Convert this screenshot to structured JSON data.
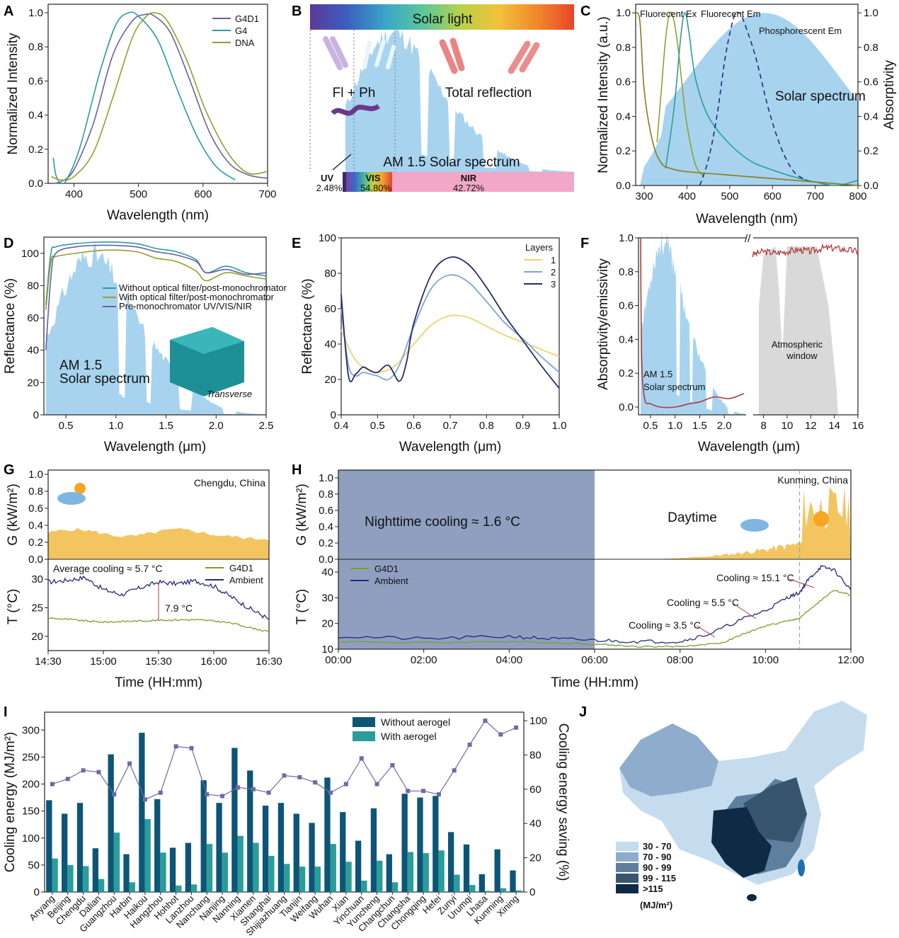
{
  "colors": {
    "g4d1": "#6a5ea8",
    "g4": "#2a9d9a",
    "dna": "#8fa12e",
    "solar_fill": "#a7d3ef",
    "gray_fill": "#d9d9d9",
    "red_line": "#b03a3a",
    "navy": "#252a7a",
    "green": "#7b9f2a",
    "yellow": "#f3c560",
    "night": "#8f9fc0",
    "bar_dark": "#0d5577",
    "bar_teal": "#2a9d9a",
    "saving_line": "#6d6aa8",
    "layer1": "#f0d36b",
    "layer2": "#7da5d3",
    "layer3": "#252a6e"
  },
  "panel_letters": [
    "A",
    "B",
    "C",
    "D",
    "E",
    "F",
    "G",
    "H",
    "I",
    "J"
  ],
  "chart_data": [
    {
      "id": "A",
      "type": "line",
      "xlabel": "Wavelength (nm)",
      "ylabel": "Normalized Intensity",
      "xlim": [
        360,
        700
      ],
      "ylim": [
        0,
        1.05
      ],
      "xticks": [
        "400",
        "500",
        "600",
        "700"
      ],
      "yticks": [
        "0.0",
        "0.2",
        "0.4",
        "0.6",
        "0.8",
        "1.0"
      ],
      "legend": "top-right",
      "series": [
        {
          "name": "G4D1",
          "x": [
            365,
            380,
            400,
            430,
            460,
            490,
            510,
            525,
            550,
            580,
            610,
            640,
            670,
            700
          ],
          "y": [
            0.0,
            0.01,
            0.08,
            0.35,
            0.75,
            0.95,
            0.99,
            0.98,
            0.88,
            0.6,
            0.3,
            0.12,
            0.05,
            0.03
          ]
        },
        {
          "name": "G4",
          "x": [
            368,
            372,
            380,
            390,
            410,
            440,
            465,
            485,
            500,
            530,
            560,
            590,
            620,
            650
          ],
          "y": [
            0.15,
            0.05,
            0.0,
            0.03,
            0.22,
            0.65,
            0.93,
            1.0,
            0.98,
            0.84,
            0.55,
            0.28,
            0.1,
            0.02
          ]
        },
        {
          "name": "DNA",
          "x": [
            365,
            380,
            400,
            430,
            460,
            490,
            510,
            525,
            545,
            575,
            605,
            640,
            670,
            700
          ],
          "y": [
            0.04,
            0.02,
            0.04,
            0.18,
            0.5,
            0.85,
            0.97,
            1.0,
            0.95,
            0.72,
            0.42,
            0.17,
            0.06,
            0.07
          ]
        }
      ]
    },
    {
      "id": "B",
      "type": "area",
      "title": "Solar light",
      "caption": "AM 1.5 Solar spectrum",
      "labels": {
        "flph": "Fl + Ph",
        "reflection": "Total reflection"
      },
      "bands": [
        {
          "name": "UV",
          "value": "2.48%"
        },
        {
          "name": "VIS",
          "value": "54.80%"
        },
        {
          "name": "NIR",
          "value": "42.72%"
        }
      ]
    },
    {
      "id": "C",
      "type": "line",
      "xlabel": "Wavelength (nm)",
      "ylabel": "Normalized Intensity (a.u.)",
      "y2label": "Absorptivity",
      "xlim": [
        280,
        800
      ],
      "ylim": [
        0,
        1.05
      ],
      "y2lim": [
        0,
        1.05
      ],
      "xticks": [
        "300",
        "400",
        "500",
        "600",
        "700",
        "800"
      ],
      "yticks": [
        "0.0",
        "0.2",
        "0.4",
        "0.6",
        "0.8",
        "1.0"
      ],
      "y2ticks": [
        "0.0",
        "0.2",
        "0.4",
        "0.6",
        "0.8",
        "1.0"
      ],
      "annotations": [
        "Fluorecent Ex",
        "Fluorecent Em",
        "Phosphorescent Em",
        "Solar spectrum"
      ],
      "series": [
        {
          "name": "Fluorecent Ex",
          "x": [
            330,
            340,
            350,
            360,
            370,
            380,
            390,
            400,
            420,
            440
          ],
          "y": [
            0.25,
            0.55,
            0.85,
            1.0,
            0.95,
            0.78,
            0.55,
            0.35,
            0.12,
            0.05
          ]
        },
        {
          "name": "Fluorecent Em",
          "x": [
            350,
            370,
            385,
            395,
            405,
            420,
            450,
            500,
            550,
            600,
            650,
            700,
            750,
            800
          ],
          "y": [
            0.1,
            0.45,
            0.85,
            1.0,
            0.88,
            0.62,
            0.4,
            0.24,
            0.14,
            0.09,
            0.05,
            0.02,
            0.0,
            0.03
          ]
        },
        {
          "name": "Phosphorescent Em",
          "x": [
            430,
            450,
            470,
            490,
            510,
            520,
            530,
            560,
            590,
            620,
            650,
            680
          ],
          "y": [
            0.0,
            0.15,
            0.4,
            0.75,
            0.98,
            1.0,
            0.97,
            0.75,
            0.45,
            0.22,
            0.08,
            0.03
          ]
        },
        {
          "name": "Absorptivity",
          "x": [
            280,
            290,
            300,
            320,
            340,
            360,
            400,
            500,
            600,
            700,
            800
          ],
          "y": [
            1.0,
            0.95,
            0.55,
            0.25,
            0.13,
            0.1,
            0.08,
            0.06,
            0.04,
            0.02,
            0.0
          ]
        }
      ]
    },
    {
      "id": "D",
      "type": "line",
      "xlabel": "Wavelength (μm)",
      "ylabel": "Reflectance (%)",
      "xlim": [
        0.28,
        2.5
      ],
      "ylim": [
        0,
        110
      ],
      "xticks": [
        "0.5",
        "1.0",
        "1.5",
        "2.0",
        "2.5"
      ],
      "yticks": [
        "0",
        "20",
        "40",
        "60",
        "80",
        "100"
      ],
      "annotations": [
        "AM 1.5",
        "Solar spectrum",
        "Transverse"
      ],
      "series": [
        {
          "name": "Without optical filter/post-monochromator",
          "x": [
            0.3,
            0.35,
            0.4,
            0.6,
            0.9,
            1.2,
            1.4,
            1.6,
            1.8,
            1.9,
            2.1,
            2.3,
            2.5
          ],
          "y": [
            68,
            100,
            104,
            106,
            107,
            106,
            103,
            101,
            96,
            88,
            92,
            88,
            86
          ]
        },
        {
          "name": "With optical filter/post-monochromator",
          "x": [
            0.3,
            0.35,
            0.4,
            0.6,
            0.9,
            1.2,
            1.4,
            1.6,
            1.8,
            1.9,
            2.1,
            2.3,
            2.5
          ],
          "y": [
            65,
            95,
            98,
            100,
            102,
            101,
            97,
            95,
            89,
            83,
            88,
            86,
            84
          ]
        },
        {
          "name": "Pre-monochromator UV/VIS/NIR",
          "x": [
            0.3,
            0.35,
            0.4,
            0.6,
            0.9,
            1.2,
            1.4,
            1.6,
            1.8,
            1.9,
            2.1,
            2.3,
            2.5
          ],
          "y": [
            40,
            85,
            100,
            104,
            105,
            104,
            101,
            99,
            95,
            88,
            90,
            87,
            88
          ]
        }
      ]
    },
    {
      "id": "E",
      "type": "line",
      "xlabel": "Wavelength (μm)",
      "ylabel": "Reflectance (%)",
      "xlim": [
        0.4,
        1.0
      ],
      "ylim": [
        0,
        100
      ],
      "xticks": [
        "0.4",
        "0.5",
        "0.6",
        "0.7",
        "0.8",
        "0.9",
        "1.0"
      ],
      "yticks": [
        "0",
        "20",
        "40",
        "60",
        "80",
        "100"
      ],
      "legend_title": "Layers",
      "legend": "top-right",
      "series": [
        {
          "name": "1",
          "x": [
            0.4,
            0.43,
            0.46,
            0.5,
            0.55,
            0.6,
            0.65,
            0.7,
            0.75,
            0.8,
            0.85,
            0.9,
            0.95,
            1.0
          ],
          "y": [
            48,
            34,
            27,
            24,
            28,
            40,
            51,
            56,
            55,
            50,
            45,
            41,
            37,
            33
          ]
        },
        {
          "name": "2",
          "x": [
            0.4,
            0.42,
            0.44,
            0.46,
            0.48,
            0.5,
            0.53,
            0.56,
            0.6,
            0.65,
            0.7,
            0.75,
            0.8,
            0.85,
            0.9,
            0.95,
            1.0
          ],
          "y": [
            60,
            28,
            22,
            24,
            23,
            22,
            20,
            28,
            50,
            72,
            79,
            75,
            64,
            52,
            43,
            33,
            24
          ]
        },
        {
          "name": "3",
          "x": [
            0.4,
            0.42,
            0.44,
            0.46,
            0.48,
            0.5,
            0.53,
            0.56,
            0.58,
            0.6,
            0.65,
            0.7,
            0.75,
            0.8,
            0.85,
            0.9,
            0.95,
            1.0
          ],
          "y": [
            68,
            22,
            23,
            27,
            25,
            24,
            28,
            19,
            30,
            52,
            80,
            89,
            85,
            72,
            56,
            42,
            28,
            15
          ]
        }
      ]
    },
    {
      "id": "F",
      "type": "line",
      "xlabel": "Wavelength (μm)",
      "ylabel": "Absorptivity/emissivity",
      "ylim": [
        0,
        1.0
      ],
      "xticks": [
        "0.5",
        "1.0",
        "1.5",
        "2.0",
        "8",
        "10",
        "12",
        "14",
        "16"
      ],
      "yticks": [
        "0.0",
        "0.2",
        "0.4",
        "0.6",
        "0.8",
        "1.0"
      ],
      "annotations": [
        "AM 1.5",
        "Solar spectrum",
        "Atmospheric",
        "window"
      ]
    },
    {
      "id": "G",
      "type": "line",
      "title": "Chengdu, China",
      "xlabel": "Time (HH:mm)",
      "ylabel_top": "G (kW/m²)",
      "ylabel_bottom": "T (°C)",
      "xticks": [
        "14:30",
        "15:00",
        "15:30",
        "16:00",
        "16:30"
      ],
      "yticks_top": [
        "0.0",
        "0.2",
        "0.4",
        "0.6",
        "0.8",
        "1.0"
      ],
      "yticks_bottom": [
        "20",
        "25",
        "30"
      ],
      "annotations": [
        "Average cooling ≈ 5.7 °C",
        "7.9 °C"
      ],
      "series": [
        {
          "name": "G4D1",
          "x": [
            0,
            10,
            20,
            30,
            40,
            50,
            60,
            70,
            80,
            90,
            100,
            110,
            120
          ],
          "y": [
            23.2,
            23.0,
            22.7,
            22.5,
            22.6,
            22.7,
            22.8,
            22.9,
            22.9,
            22.7,
            22.3,
            21.5,
            20.8
          ]
        },
        {
          "name": "Ambient",
          "x": [
            0,
            10,
            20,
            30,
            40,
            50,
            60,
            70,
            80,
            90,
            100,
            110,
            120
          ],
          "y": [
            29.5,
            29.8,
            30.3,
            28.2,
            27.3,
            28.5,
            29.5,
            29.2,
            29.7,
            28.8,
            26.8,
            24.8,
            23.0
          ]
        }
      ]
    },
    {
      "id": "H",
      "type": "line",
      "title": "Kunming, China",
      "xlabel": "Time (HH:mm)",
      "ylabel_top": "G (kW/m²)",
      "ylabel_bottom": "T (°C)",
      "xticks": [
        "00:00",
        "02:00",
        "04:00",
        "06:00",
        "08:00",
        "10:00",
        "12:00"
      ],
      "yticks_top": [
        "0.0",
        "0.2",
        "0.4",
        "0.6",
        "0.8",
        "1.0"
      ],
      "yticks_bottom": [
        "10",
        "20",
        "30",
        "40"
      ],
      "annotations": [
        "Nighttime cooling ≈ 1.6 °C",
        "Daytime",
        "Cooling ≈ 15.1 °C",
        "Cooling ≈ 5.5 °C",
        "Cooling ≈ 3.5 °C"
      ],
      "series": [
        {
          "name": "G4D1",
          "x": [
            0,
            2,
            4,
            5,
            6,
            7,
            8,
            9,
            9.5,
            10,
            10.5,
            10.8,
            11,
            11.3,
            11.6,
            12
          ],
          "y": [
            13,
            12.5,
            13,
            12.5,
            12,
            11,
            11,
            12.5,
            16,
            19,
            21,
            22,
            25,
            29,
            33,
            31
          ]
        },
        {
          "name": "Ambient",
          "x": [
            0,
            2,
            4,
            5,
            6,
            7,
            8,
            8.7,
            9.5,
            10,
            10.5,
            10.8,
            11,
            11.3,
            11.6,
            12
          ],
          "y": [
            15,
            14,
            15,
            14,
            13.5,
            13,
            13,
            16,
            22,
            25,
            30,
            32,
            37,
            42,
            41,
            33
          ]
        }
      ]
    },
    {
      "id": "I",
      "type": "bar",
      "ylabel": "Cooling energy (MJ/m²)",
      "y2label": "Cooling energy saving (%)",
      "ylim": [
        0,
        320
      ],
      "y2lim": [
        0,
        105
      ],
      "yticks": [
        "0",
        "50",
        "100",
        "150",
        "200",
        "250",
        "300"
      ],
      "y2ticks": [
        "0",
        "20",
        "40",
        "60",
        "80",
        "100"
      ],
      "legend": "top-center",
      "categories": [
        "Anyang",
        "Beijing",
        "Chengdu",
        "Dalian",
        "Guangzhou",
        "Harbin",
        "Haikou",
        "Hangzhou",
        "Hohhot",
        "Lanzhou",
        "Nanchang",
        "Nanjing",
        "Nanning",
        "Xiamen",
        "Shanghai",
        "Shijiazhuang",
        "Tianjin",
        "Weifang",
        "Wuhan",
        "Xian",
        "Yinchuan",
        "Yuncheng",
        "Changchun",
        "Changsha",
        "Chongqing",
        "Hefei",
        "Zunyi",
        "Urumqi",
        "Lhasa",
        "Kunming",
        "Xining"
      ],
      "series": [
        {
          "name": "Without aerogel",
          "values": [
            170,
            145,
            165,
            81,
            255,
            70,
            295,
            172,
            82,
            91,
            207,
            165,
            267,
            225,
            160,
            165,
            145,
            128,
            212,
            148,
            95,
            155,
            70,
            182,
            175,
            178,
            111,
            88,
            33,
            79,
            40
          ]
        },
        {
          "name": "With aerogel",
          "values": [
            62,
            50,
            48,
            24,
            110,
            18,
            135,
            73,
            12,
            14,
            89,
            73,
            104,
            91,
            67,
            52,
            47,
            47,
            89,
            56,
            21,
            58,
            18,
            74,
            72,
            77,
            32,
            13,
            2,
            7,
            3
          ]
        },
        {
          "name": "Cooling energy saving",
          "values": [
            63,
            66,
            71,
            70,
            57,
            75,
            54,
            58,
            85,
            84,
            57,
            56,
            61,
            60,
            58,
            68,
            67,
            64,
            58,
            63,
            78,
            63,
            74,
            59,
            59,
            57,
            71,
            86,
            100,
            92,
            96
          ]
        }
      ]
    },
    {
      "id": "J",
      "type": "heatmap",
      "legend": [
        {
          "range": "30 - 70",
          "color": "#c5dcef"
        },
        {
          "range": "70 - 90",
          "color": "#8eaccb"
        },
        {
          "range": "90 - 99",
          "color": "#5f7f9f"
        },
        {
          "range": "99 - 115",
          "color": "#38556f"
        },
        {
          "range": ">115",
          "color": "#0f2a44"
        }
      ],
      "unit": "(MJ/m²)"
    }
  ]
}
